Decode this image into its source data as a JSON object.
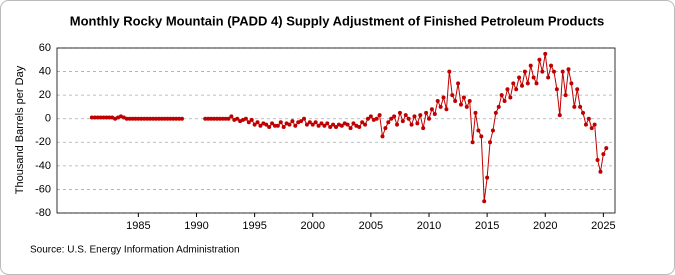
{
  "chart_data": {
    "type": "line",
    "title": "Monthly Rocky Mountain (PADD 4) Supply Adjustment of Finished Petroleum Products",
    "y_label": "Thousand Barrels per Day",
    "source": "Source: U.S. Energy Information Administration",
    "xlim": [
      1978,
      2026
    ],
    "xticks": [
      1985,
      1990,
      1995,
      2000,
      2005,
      2010,
      2015,
      2020,
      2025
    ],
    "ylim": [
      -80,
      60
    ],
    "yticks": [
      -80,
      -60,
      -40,
      -20,
      0,
      20,
      40,
      60
    ],
    "grid": true,
    "x": [
      1981,
      1981.25,
      1981.5,
      1981.75,
      1982,
      1982.25,
      1982.5,
      1982.75,
      1983,
      1983.25,
      1983.5,
      1983.75,
      1984,
      1984.25,
      1984.5,
      1984.75,
      1985,
      1985.25,
      1985.5,
      1985.75,
      1986,
      1986.25,
      1986.5,
      1986.75,
      1987,
      1987.25,
      1987.5,
      1987.75,
      1988,
      1988.25,
      1988.5,
      1988.75,
      1989.5,
      1990.75,
      1991,
      1991.25,
      1991.5,
      1991.75,
      1992,
      1992.25,
      1992.5,
      1992.75,
      1993,
      1993.25,
      1993.5,
      1993.75,
      1994,
      1994.25,
      1994.5,
      1994.75,
      1995,
      1995.25,
      1995.5,
      1995.75,
      1996,
      1996.25,
      1996.5,
      1996.75,
      1997,
      1997.25,
      1997.5,
      1997.75,
      1998,
      1998.25,
      1998.5,
      1998.75,
      1999,
      1999.25,
      1999.5,
      1999.75,
      2000,
      2000.25,
      2000.5,
      2000.75,
      2001,
      2001.25,
      2001.5,
      2001.75,
      2002,
      2002.25,
      2002.5,
      2002.75,
      2003,
      2003.25,
      2003.5,
      2003.75,
      2004,
      2004.25,
      2004.5,
      2004.75,
      2005,
      2005.25,
      2005.5,
      2005.75,
      2006,
      2006.25,
      2006.5,
      2006.75,
      2007,
      2007.25,
      2007.5,
      2007.75,
      2008,
      2008.25,
      2008.5,
      2008.75,
      2009,
      2009.25,
      2009.5,
      2009.75,
      2010,
      2010.25,
      2010.5,
      2010.75,
      2011,
      2011.25,
      2011.5,
      2011.75,
      2012,
      2012.25,
      2012.5,
      2012.75,
      2013,
      2013.25,
      2013.5,
      2013.75,
      2014,
      2014.25,
      2014.5,
      2014.75,
      2015,
      2015.25,
      2015.5,
      2015.75,
      2016,
      2016.25,
      2016.5,
      2016.75,
      2017,
      2017.25,
      2017.5,
      2017.75,
      2018,
      2018.25,
      2018.5,
      2018.75,
      2019,
      2019.25,
      2019.5,
      2019.75,
      2020,
      2020.25,
      2020.5,
      2020.75,
      2021,
      2021.25,
      2021.5,
      2021.75,
      2022,
      2022.25,
      2022.5,
      2022.75,
      2023,
      2023.25,
      2023.5,
      2023.75,
      2024,
      2024.25,
      2024.5,
      2024.75,
      2025,
      2025.25
    ],
    "series": [
      {
        "color": "#c00000",
        "values": [
          1,
          1,
          1,
          1,
          1,
          1,
          1,
          1,
          0,
          1,
          2,
          1,
          0,
          0,
          0,
          0,
          0,
          0,
          0,
          0,
          0,
          0,
          0,
          0,
          0,
          0,
          0,
          0,
          0,
          0,
          0,
          0,
          null,
          0,
          0,
          0,
          0,
          0,
          0,
          0,
          0,
          0,
          2,
          -1,
          0,
          -2,
          -1,
          0,
          -3,
          -1,
          -5,
          -3,
          -6,
          -4,
          -5,
          -7,
          -4,
          -6,
          -6,
          -3,
          -7,
          -4,
          -5,
          -2,
          -6,
          -3,
          -2,
          0,
          -5,
          -3,
          -5,
          -3,
          -6,
          -4,
          -6,
          -4,
          -7,
          -5,
          -7,
          -5,
          -6,
          -4,
          -5,
          -8,
          -4,
          -6,
          -7,
          -3,
          -5,
          0,
          2,
          -1,
          0,
          3,
          -15,
          -8,
          -3,
          0,
          2,
          -5,
          5,
          -2,
          3,
          0,
          -5,
          2,
          -4,
          3,
          -8,
          5,
          0,
          8,
          4,
          15,
          10,
          18,
          8,
          40,
          20,
          15,
          30,
          12,
          18,
          10,
          15,
          -20,
          5,
          -10,
          -15,
          -70,
          -50,
          -20,
          -10,
          5,
          10,
          20,
          15,
          25,
          18,
          30,
          25,
          35,
          28,
          40,
          30,
          45,
          35,
          30,
          50,
          40,
          55,
          35,
          45,
          40,
          25,
          3,
          40,
          20,
          42,
          30,
          10,
          25,
          10,
          5,
          -5,
          0,
          -8,
          -5,
          -35,
          -45,
          -30,
          -25
        ]
      }
    ]
  }
}
